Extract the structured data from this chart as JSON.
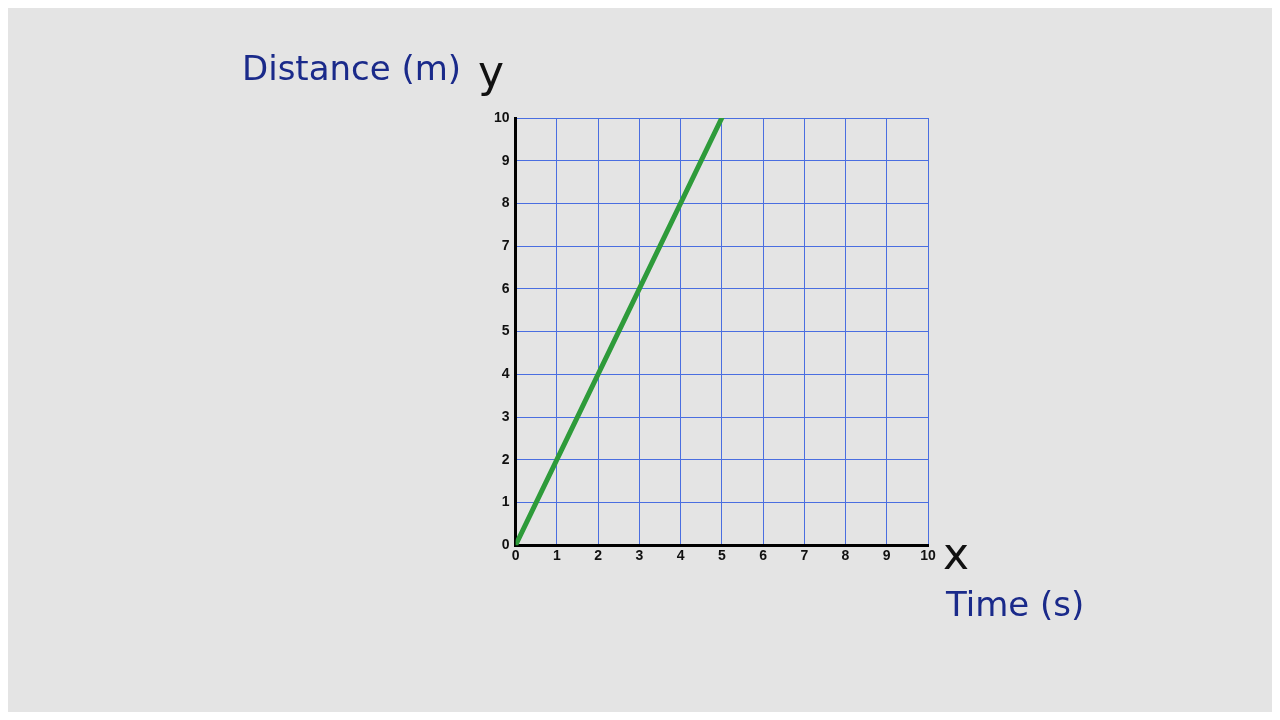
{
  "chart_data": {
    "type": "line",
    "xlabel": "Time (s)",
    "ylabel": "Distance (m)",
    "annotations": [
      "y",
      "x"
    ],
    "x": [
      0,
      5
    ],
    "series": [
      {
        "color": "#2e9b3a",
        "values": [
          0,
          10
        ]
      }
    ],
    "xlim": [
      0,
      10
    ],
    "xticks": [
      0,
      1,
      2,
      3,
      4,
      5,
      6,
      7,
      8,
      9,
      10
    ],
    "ylim": [
      0,
      10
    ],
    "yticks": [
      0,
      1,
      2,
      3,
      4,
      5,
      6,
      7,
      8,
      9,
      10
    ],
    "grid": true,
    "legend": false,
    "marker": "none",
    "line_style": "solid"
  }
}
